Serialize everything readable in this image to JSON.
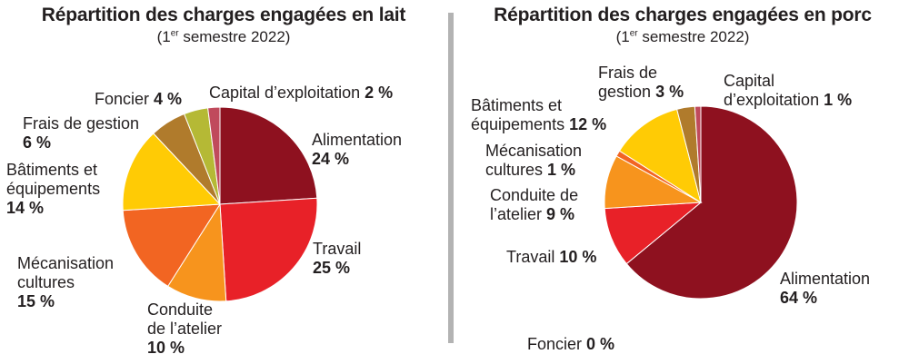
{
  "chart_data": [
    {
      "type": "pie",
      "title": "Répartition des charges engagées en lait",
      "subtitle": {
        "open": "(1",
        "sup": "er",
        "rest": " semestre 2022)"
      },
      "slices": [
        {
          "label": "Alimentation",
          "value": 24,
          "value_label": "24 %",
          "color": "#8e111f"
        },
        {
          "label": "Travail",
          "value": 25,
          "value_label": "25 %",
          "color": "#e82128"
        },
        {
          "label": "Conduite de l’atelier",
          "value": 10,
          "value_label": "10 %",
          "color": "#f7941d"
        },
        {
          "label": "Mécanisation cultures",
          "value": 15,
          "value_label": "15 %",
          "color": "#f26522"
        },
        {
          "label": "Bâtiments et équipements",
          "value": 14,
          "value_label": "14 %",
          "color": "#ffcb05"
        },
        {
          "label": "Frais de gestion",
          "value": 6,
          "value_label": "6 %",
          "color": "#b07b2c"
        },
        {
          "label": "Foncier",
          "value": 4,
          "value_label": "4 %",
          "color": "#b5b935"
        },
        {
          "label": "Capital d’exploitation",
          "value": 2,
          "value_label": "2 %",
          "color": "#c04a5c"
        }
      ]
    },
    {
      "type": "pie",
      "title": "Répartition des charges engagées en porc",
      "subtitle": {
        "open": "(1",
        "sup": "er",
        "rest": " semestre 2022)"
      },
      "slices": [
        {
          "label": "Alimentation",
          "value": 64,
          "value_label": "64 %",
          "color": "#8e111f"
        },
        {
          "label": "Travail",
          "value": 10,
          "value_label": "10 %",
          "color": "#e82128"
        },
        {
          "label": "Conduite de l’atelier",
          "value": 9,
          "value_label": "9 %",
          "color": "#f7941d"
        },
        {
          "label": "Mécanisation cultures",
          "value": 1,
          "value_label": "1 %",
          "color": "#f26522"
        },
        {
          "label": "Bâtiments et équipements",
          "value": 12,
          "value_label": "12 %",
          "color": "#ffcb05"
        },
        {
          "label": "Frais de gestion",
          "value": 3,
          "value_label": "3 %",
          "color": "#b07b2c"
        },
        {
          "label": "Foncier",
          "value": 0,
          "value_label": "0 %",
          "color": "#b5b935"
        },
        {
          "label": "Capital d’exploitation",
          "value": 1,
          "value_label": "1 %",
          "color": "#c04a5c"
        }
      ]
    }
  ],
  "labels": {
    "lait": {
      "alimentation": [
        "Alimentation"
      ],
      "travail": [
        "Travail"
      ],
      "conduite": [
        "Conduite",
        "de l’atelier"
      ],
      "mecanisation": [
        "Mécanisation",
        "cultures"
      ],
      "batiments": [
        "Bâtiments et",
        "équipements"
      ],
      "frais": [
        "Frais de gestion"
      ],
      "foncier": [
        "Foncier"
      ],
      "capital": [
        "Capital d’exploitation"
      ]
    },
    "porc": {
      "alimentation": [
        "Alimentation"
      ],
      "travail": [
        "Travail"
      ],
      "conduite": [
        "Conduite de",
        "l’atelier"
      ],
      "mecanisation": [
        "Mécanisation",
        "cultures"
      ],
      "batiments": [
        "Bâtiments et",
        "équipements"
      ],
      "frais": [
        "Frais de",
        "gestion"
      ],
      "foncier": [
        "Foncier"
      ],
      "capital": [
        "Capital",
        "d’exploitation"
      ]
    }
  }
}
